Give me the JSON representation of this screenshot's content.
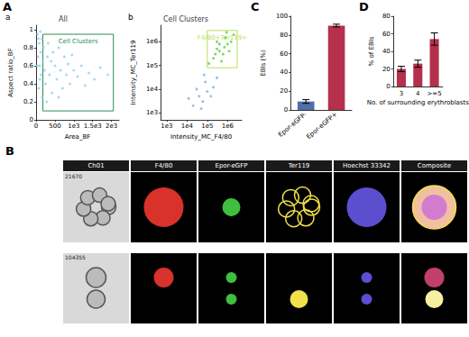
{
  "panel_labels": [
    "A",
    "B",
    "C",
    "D"
  ],
  "chart_data": [
    {
      "type": "scatter",
      "panel": "a",
      "title": "All",
      "xlabel": "Area_BF",
      "ylabel": "Aspect ratio_BF",
      "xlim": [
        0,
        2200
      ],
      "xticks": [
        0,
        500,
        {
          "value": 1000,
          "label": "1e3"
        },
        {
          "value": 1500,
          "label": "1.5e3"
        },
        {
          "value": 2000,
          "label": "2e3"
        }
      ],
      "ylim": [
        0,
        1.05
      ],
      "yticks": [
        0,
        0.2,
        0.4,
        0.6,
        0.8,
        1
      ],
      "grid": false,
      "series": [
        {
          "color": "#8fd3ea",
          "values": [
            [
              40,
              0.95
            ],
            [
              60,
              0.9
            ],
            [
              80,
              0.85
            ],
            [
              50,
              0.7
            ],
            [
              90,
              0.6
            ],
            [
              120,
              0.75
            ],
            [
              150,
              0.9
            ],
            [
              100,
              0.45
            ],
            [
              70,
              0.35
            ],
            [
              130,
              0.5
            ],
            [
              180,
              0.65
            ],
            [
              200,
              0.8
            ],
            [
              220,
              0.55
            ],
            [
              250,
              0.4
            ],
            [
              300,
              0.7
            ],
            [
              320,
              0.85
            ],
            [
              350,
              0.5
            ],
            [
              400,
              0.65
            ],
            [
              420,
              0.3
            ],
            [
              450,
              0.75
            ],
            [
              500,
              0.6
            ],
            [
              550,
              0.45
            ],
            [
              600,
              0.8
            ],
            [
              650,
              0.55
            ],
            [
              700,
              0.35
            ],
            [
              750,
              0.7
            ],
            [
              800,
              0.5
            ],
            [
              850,
              0.62
            ],
            [
              900,
              0.4
            ],
            [
              950,
              0.72
            ],
            [
              1000,
              0.55
            ],
            [
              1100,
              0.48
            ],
            [
              1200,
              0.6
            ],
            [
              1300,
              0.38
            ],
            [
              1400,
              0.52
            ],
            [
              1550,
              0.45
            ],
            [
              1700,
              0.58
            ],
            [
              1900,
              0.5
            ],
            [
              280,
              0.2
            ],
            [
              600,
              0.25
            ],
            [
              160,
              0.25
            ],
            [
              30,
              0.6
            ],
            [
              110,
              0.98
            ]
          ]
        }
      ],
      "gate": {
        "label": "Cell Clusters",
        "x": [
          180,
          2050
        ],
        "y": [
          0.1,
          0.95
        ],
        "color": "#2e8b57"
      }
    },
    {
      "type": "scatter",
      "panel": "b",
      "title": "Cell Clusters",
      "xlabel": "Intensity_MC_F4/80",
      "ylabel": "Intensity_MC_Ter119",
      "log": true,
      "xlim": [
        500,
        5000000
      ],
      "xticks": [
        {
          "value": 1000,
          "label": "1e3"
        },
        {
          "value": 10000,
          "label": "1e4"
        },
        {
          "value": 100000,
          "label": "1e5"
        },
        {
          "value": 1000000,
          "label": "1e6"
        }
      ],
      "ylim": [
        500,
        5000000
      ],
      "yticks": [
        {
          "value": 1000,
          "label": "1e3"
        },
        {
          "value": 10000,
          "label": "1e4"
        },
        {
          "value": 100000,
          "label": "1e5"
        },
        {
          "value": 1000000,
          "label": "1e6"
        }
      ],
      "grid": false,
      "series": [
        {
          "color": "#7ab6d9",
          "values": [
            [
              20000,
              2000
            ],
            [
              40000,
              5000
            ],
            [
              60000,
              3000
            ],
            [
              100000,
              8000
            ],
            [
              30000,
              10000
            ],
            [
              80000,
              20000
            ],
            [
              150000,
              5000
            ],
            [
              50000,
              1500
            ],
            [
              200000,
              12000
            ],
            [
              12000,
              4000
            ],
            [
              70000,
              40000
            ],
            [
              300000,
              30000
            ]
          ]
        },
        {
          "color": "#5fcf3a",
          "values": [
            [
              200000,
              200000
            ],
            [
              400000,
              400000
            ],
            [
              600000,
              300000
            ],
            [
              1000000,
              800000
            ],
            [
              300000,
              1000000
            ],
            [
              800000,
              1500000
            ],
            [
              1500000,
              1000000
            ],
            [
              500000,
              150000
            ],
            [
              2000000,
              2000000
            ],
            [
              120000,
              120000
            ],
            [
              700000,
              600000
            ],
            [
              300000,
              500000
            ],
            [
              1200000,
              400000
            ],
            [
              900000,
              2500000
            ],
            [
              400000,
              800000
            ],
            [
              250000,
              300000
            ]
          ]
        }
      ],
      "gate": {
        "label": "F4/80+Ter119+",
        "x": [
          100000,
          3000000
        ],
        "y": [
          80000,
          3000000
        ],
        "color": "#b8e05a"
      }
    },
    {
      "type": "bar",
      "panel": "C",
      "ylabel": "EBIs (%)",
      "categories": [
        "Epor-eGFP-",
        "Epor-eGFP+"
      ],
      "values": [
        9,
        90
      ],
      "errors": [
        2,
        1.5
      ],
      "colors": [
        "#4f6fa8",
        "#b5304a"
      ],
      "ylim": [
        0,
        100
      ],
      "yticks": [
        0,
        20,
        40,
        60,
        80,
        100
      ],
      "grid": false
    },
    {
      "type": "bar",
      "panel": "D",
      "ylabel": "% of EBIs",
      "xlabel": "No. of surrounding erythroblasts",
      "categories": [
        "3",
        "4",
        ">=5"
      ],
      "values": [
        20,
        26,
        54
      ],
      "errors": [
        3,
        4,
        7
      ],
      "color": "#b5304a",
      "ylim": [
        0,
        80
      ],
      "yticks": [
        0,
        20,
        40,
        60,
        80
      ],
      "grid": false
    }
  ],
  "image_panel": {
    "channels": [
      "Ch01",
      "F4/80",
      "Epor-eGFP",
      "Ter119",
      "Hoechst 33342",
      "Composite"
    ],
    "rows": [
      {
        "id": "21670"
      },
      {
        "id": "104355"
      }
    ]
  }
}
